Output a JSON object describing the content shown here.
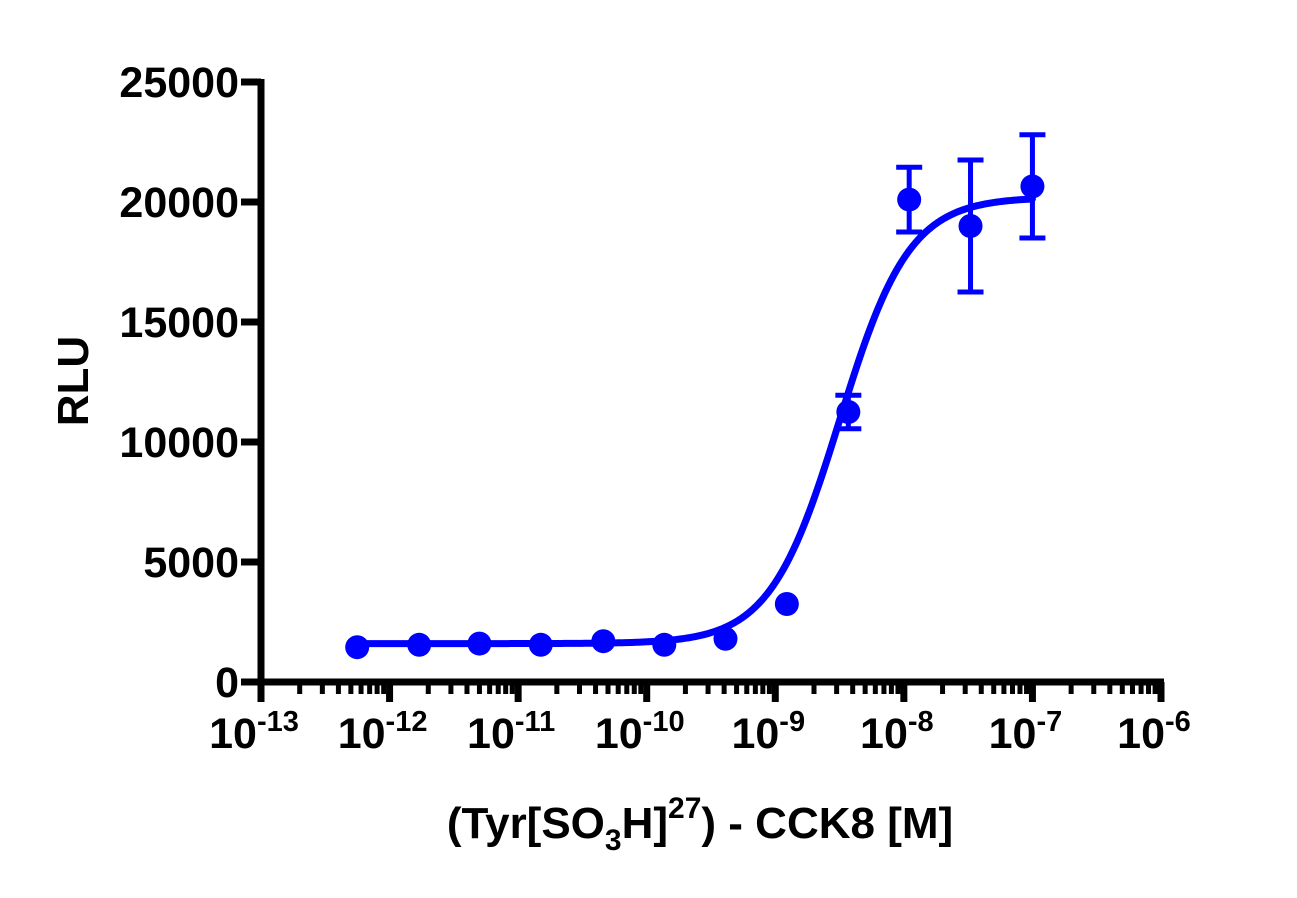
{
  "chart_data": {
    "type": "scatter",
    "title": "",
    "xlabel": {
      "part1": "(Tyr[SO",
      "sub": "3",
      "part2": "H]",
      "sup": "27",
      "part3": ") - CCK8 [M]"
    },
    "ylabel": "RLU",
    "x_scale": "log",
    "xlim": [
      1e-13,
      1e-06
    ],
    "ylim": [
      0,
      25000
    ],
    "x_ticks": [
      {
        "value": 1e-13,
        "base": "10",
        "exp": "-13"
      },
      {
        "value": 1e-12,
        "base": "10",
        "exp": "-12"
      },
      {
        "value": 1e-11,
        "base": "10",
        "exp": "-11"
      },
      {
        "value": 1e-10,
        "base": "10",
        "exp": "-10"
      },
      {
        "value": 1e-09,
        "base": "10",
        "exp": "-9"
      },
      {
        "value": 1e-08,
        "base": "10",
        "exp": "-8"
      },
      {
        "value": 1e-07,
        "base": "10",
        "exp": "-7"
      },
      {
        "value": 1e-06,
        "base": "10",
        "exp": "-6"
      }
    ],
    "y_ticks": [
      {
        "value": 0,
        "label": "0"
      },
      {
        "value": 5000,
        "label": "5000"
      },
      {
        "value": 10000,
        "label": "10000"
      },
      {
        "value": 15000,
        "label": "15000"
      },
      {
        "value": 20000,
        "label": "20000"
      },
      {
        "value": 25000,
        "label": "25000"
      }
    ],
    "grid": false,
    "series": [
      {
        "color": "#0000ff",
        "x": [
          5.6e-13,
          1.7e-12,
          5e-12,
          1.5e-11,
          4.6e-11,
          1.37e-10,
          4.1e-10,
          1.23e-09,
          3.7e-09,
          1.1e-08,
          3.3e-08,
          1e-07
        ],
        "y": [
          1450,
          1550,
          1600,
          1550,
          1700,
          1550,
          1800,
          3250,
          11250,
          20100,
          19000,
          20650
        ],
        "error": [
          0,
          0,
          0,
          0,
          0,
          0,
          0,
          0,
          700,
          1350,
          2750,
          2150
        ]
      }
    ],
    "fit": {
      "type": "four-parameter logistic",
      "color": "#0000ff",
      "bottom": 1600,
      "top": 20200,
      "log_ec50": -8.5,
      "hill": 1.6
    }
  }
}
